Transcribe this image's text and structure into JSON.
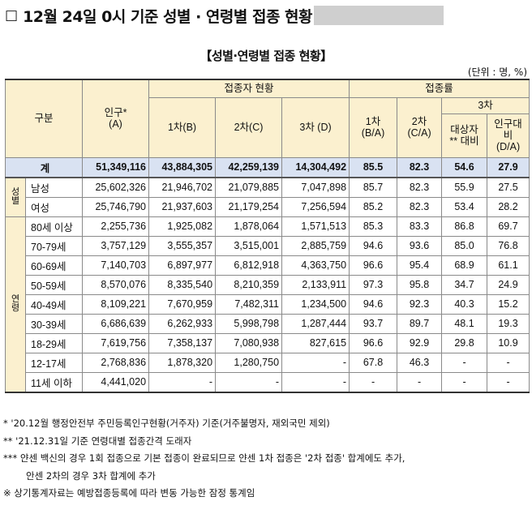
{
  "heading": {
    "marker": "□",
    "text": "12월 24일 0시 기준 성별 · 연령별 접종 현황"
  },
  "subtitle": "【성별·연령별 접종 현황】",
  "unit": "(단위 : 명, %)",
  "header": {
    "gubun": "구분",
    "population": "인구*",
    "population_sub": "(A)",
    "vaccinated": "접종자 현황",
    "rate": "접종률",
    "dose1": "1차(B)",
    "dose2": "2차(C)",
    "dose3": "3차 (D)",
    "rate1": "1차",
    "rate1_sub": "(B/A)",
    "rate2": "2차",
    "rate2_sub": "(C/A)",
    "dose3_group": "3차",
    "target_l1": "대상자",
    "target_l2": "** 대비",
    "pop_ratio_l1": "인구대",
    "pop_ratio_l2": "비",
    "pop_ratio_l3": "(D/A)"
  },
  "total": {
    "label": "계",
    "pop": "51,349,116",
    "d1": "43,884,305",
    "d2": "42,259,139",
    "d3": "14,304,492",
    "r1": "85.5",
    "r2": "82.3",
    "r3t": "54.6",
    "r3p": "27.9"
  },
  "sex_group": "성별",
  "sex_rows": [
    {
      "label": "남성",
      "pop": "25,602,326",
      "d1": "21,946,702",
      "d2": "21,079,885",
      "d3": "7,047,898",
      "r1": "85.7",
      "r2": "82.3",
      "r3t": "55.9",
      "r3p": "27.5"
    },
    {
      "label": "여성",
      "pop": "25,746,790",
      "d1": "21,937,603",
      "d2": "21,179,254",
      "d3": "7,256,594",
      "r1": "85.2",
      "r2": "82.3",
      "r3t": "53.4",
      "r3p": "28.2"
    }
  ],
  "age_group": "연령",
  "age_rows": [
    {
      "label": "80세 이상",
      "pop": "2,255,736",
      "d1": "1,925,082",
      "d2": "1,878,064",
      "d3": "1,571,513",
      "r1": "85.3",
      "r2": "83.3",
      "r3t": "86.8",
      "r3p": "69.7"
    },
    {
      "label": "70-79세",
      "pop": "3,757,129",
      "d1": "3,555,357",
      "d2": "3,515,001",
      "d3": "2,885,759",
      "r1": "94.6",
      "r2": "93.6",
      "r3t": "85.0",
      "r3p": "76.8"
    },
    {
      "label": "60-69세",
      "pop": "7,140,703",
      "d1": "6,897,977",
      "d2": "6,812,918",
      "d3": "4,363,750",
      "r1": "96.6",
      "r2": "95.4",
      "r3t": "68.9",
      "r3p": "61.1"
    },
    {
      "label": "50-59세",
      "pop": "8,570,076",
      "d1": "8,335,540",
      "d2": "8,210,359",
      "d3": "2,133,911",
      "r1": "97.3",
      "r2": "95.8",
      "r3t": "34.7",
      "r3p": "24.9"
    },
    {
      "label": "40-49세",
      "pop": "8,109,221",
      "d1": "7,670,959",
      "d2": "7,482,311",
      "d3": "1,234,500",
      "r1": "94.6",
      "r2": "92.3",
      "r3t": "40.3",
      "r3p": "15.2"
    },
    {
      "label": "30-39세",
      "pop": "6,686,639",
      "d1": "6,262,933",
      "d2": "5,998,798",
      "d3": "1,287,444",
      "r1": "93.7",
      "r2": "89.7",
      "r3t": "48.1",
      "r3p": "19.3"
    },
    {
      "label": "18-29세",
      "pop": "7,619,756",
      "d1": "7,358,137",
      "d2": "7,080,938",
      "d3": "827,615",
      "r1": "96.6",
      "r2": "92.9",
      "r3t": "29.8",
      "r3p": "10.9"
    },
    {
      "label": "12-17세",
      "pop": "2,768,836",
      "d1": "1,878,320",
      "d2": "1,280,750",
      "d3": "-",
      "r1": "67.8",
      "r2": "46.3",
      "r3t": "-",
      "r3p": "-"
    },
    {
      "label": "11세 이하",
      "pop": "4,441,020",
      "d1": "-",
      "d2": "-",
      "d3": "-",
      "r1": "-",
      "r2": "-",
      "r3t": "-",
      "r3p": "-"
    }
  ],
  "notes": [
    "* '20.12월 행정안전부 주민등록인구현황(거주자) 기준(거주불명자, 재외국민 제외)",
    "** '21.12.31일 기준 연령대별 접종간격 도래자",
    "*** 얀센 백신의 경우 1회 접종으로 기본 접종이 완료되므로 얀센 1차 접종은 '2차 접종' 합계에도 추가,",
    "안센 2차의 경우 3차 합계에 추가",
    "※ 상기통계자료는 예방접종등록에 따라 변동 가능한 잠정 통계임"
  ]
}
